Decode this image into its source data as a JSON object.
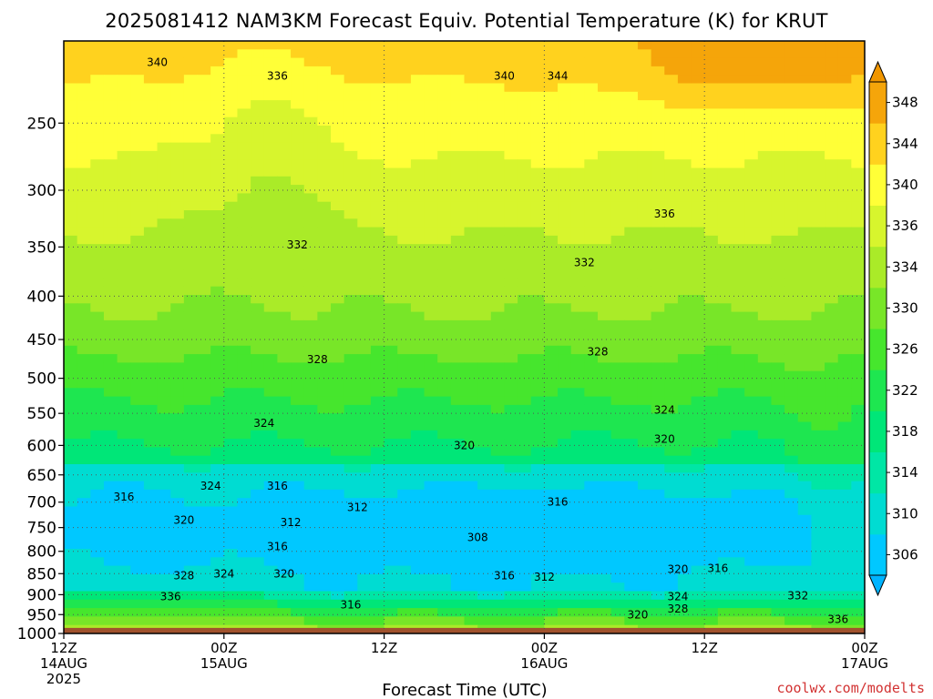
{
  "chart_data": {
    "type": "heatmap",
    "title": "2025081412 NAM3KM Forecast Equiv. Potential Temperature (K) for KRUT",
    "xlabel": "Forecast Time (UTC)",
    "ylabel": "",
    "y_scale": "log",
    "y_inverted": true,
    "ylim": [
      1000,
      200
    ],
    "y_ticks": [
      250,
      300,
      350,
      400,
      450,
      500,
      550,
      600,
      650,
      700,
      750,
      800,
      850,
      900,
      950,
      1000
    ],
    "x_range": [
      "2025-08-14T12:00Z",
      "2025-08-17T00:00Z"
    ],
    "x_ticks": [
      {
        "time": "2025-08-14T12:00Z",
        "lines": [
          "12Z",
          "14AUG",
          "2025"
        ]
      },
      {
        "time": "2025-08-15T00:00Z",
        "lines": [
          "00Z",
          "15AUG"
        ]
      },
      {
        "time": "2025-08-15T12:00Z",
        "lines": [
          "12Z"
        ]
      },
      {
        "time": "2025-08-16T00:00Z",
        "lines": [
          "00Z",
          "16AUG"
        ]
      },
      {
        "time": "2025-08-16T12:00Z",
        "lines": [
          "12Z"
        ]
      },
      {
        "time": "2025-08-17T00:00Z",
        "lines": [
          "00Z",
          "17AUG"
        ]
      }
    ],
    "grid": true,
    "colorbar": {
      "labels": [
        306,
        310,
        314,
        318,
        322,
        326,
        330,
        334,
        336,
        340,
        344,
        348
      ],
      "colors": [
        "#00c8ff",
        "#00dcd2",
        "#00e6a5",
        "#00e678",
        "#1ee650",
        "#46e62d",
        "#78e628",
        "#aaeb28",
        "#d7f52d",
        "#ffff37",
        "#ffd21e",
        "#f5a50a"
      ],
      "min": 306,
      "max": 348
    },
    "contour_labels": [
      {
        "time": "2025-08-14T19:00Z",
        "p": 212,
        "value": "340"
      },
      {
        "time": "2025-08-15T04:00Z",
        "p": 220,
        "value": "336"
      },
      {
        "time": "2025-08-15T21:00Z",
        "p": 220,
        "value": "340"
      },
      {
        "time": "2025-08-16T01:00Z",
        "p": 220,
        "value": "344"
      },
      {
        "time": "2025-08-16T09:00Z",
        "p": 320,
        "value": "336"
      },
      {
        "time": "2025-08-15T05:30Z",
        "p": 348,
        "value": "332"
      },
      {
        "time": "2025-08-16T03:00Z",
        "p": 365,
        "value": "332"
      },
      {
        "time": "2025-08-15T07:00Z",
        "p": 475,
        "value": "328"
      },
      {
        "time": "2025-08-16T04:00Z",
        "p": 465,
        "value": "328"
      },
      {
        "time": "2025-08-15T03:00Z",
        "p": 565,
        "value": "324"
      },
      {
        "time": "2025-08-16T09:00Z",
        "p": 545,
        "value": "324"
      },
      {
        "time": "2025-08-15T18:00Z",
        "p": 600,
        "value": "320"
      },
      {
        "time": "2025-08-16T09:00Z",
        "p": 590,
        "value": "320"
      },
      {
        "time": "2025-08-14T16:30Z",
        "p": 690,
        "value": "316"
      },
      {
        "time": "2025-08-14T23:00Z",
        "p": 670,
        "value": "324"
      },
      {
        "time": "2025-08-15T04:00Z",
        "p": 670,
        "value": "316"
      },
      {
        "time": "2025-08-16T01:00Z",
        "p": 700,
        "value": "316"
      },
      {
        "time": "2025-08-14T21:00Z",
        "p": 735,
        "value": "320"
      },
      {
        "time": "2025-08-15T05:00Z",
        "p": 740,
        "value": "312"
      },
      {
        "time": "2025-08-15T10:00Z",
        "p": 710,
        "value": "312"
      },
      {
        "time": "2025-08-15T19:00Z",
        "p": 770,
        "value": "308"
      },
      {
        "time": "2025-08-15T04:00Z",
        "p": 790,
        "value": "316"
      },
      {
        "time": "2025-08-14T21:00Z",
        "p": 855,
        "value": "328"
      },
      {
        "time": "2025-08-15T00:00Z",
        "p": 850,
        "value": "324"
      },
      {
        "time": "2025-08-15T04:30Z",
        "p": 850,
        "value": "320"
      },
      {
        "time": "2025-08-15T21:00Z",
        "p": 855,
        "value": "316"
      },
      {
        "time": "2025-08-16T00:00Z",
        "p": 858,
        "value": "312"
      },
      {
        "time": "2025-08-16T10:00Z",
        "p": 840,
        "value": "320"
      },
      {
        "time": "2025-08-16T13:00Z",
        "p": 838,
        "value": "316"
      },
      {
        "time": "2025-08-14T20:00Z",
        "p": 905,
        "value": "336"
      },
      {
        "time": "2025-08-15T09:30Z",
        "p": 925,
        "value": "316"
      },
      {
        "time": "2025-08-16T10:00Z",
        "p": 905,
        "value": "324"
      },
      {
        "time": "2025-08-16T10:00Z",
        "p": 935,
        "value": "328"
      },
      {
        "time": "2025-08-16T07:00Z",
        "p": 950,
        "value": "320"
      },
      {
        "time": "2025-08-16T19:00Z",
        "p": 902,
        "value": "332"
      },
      {
        "time": "2025-08-16T22:00Z",
        "p": 962,
        "value": "336"
      }
    ],
    "credit": "coolwx.com/modelts"
  }
}
